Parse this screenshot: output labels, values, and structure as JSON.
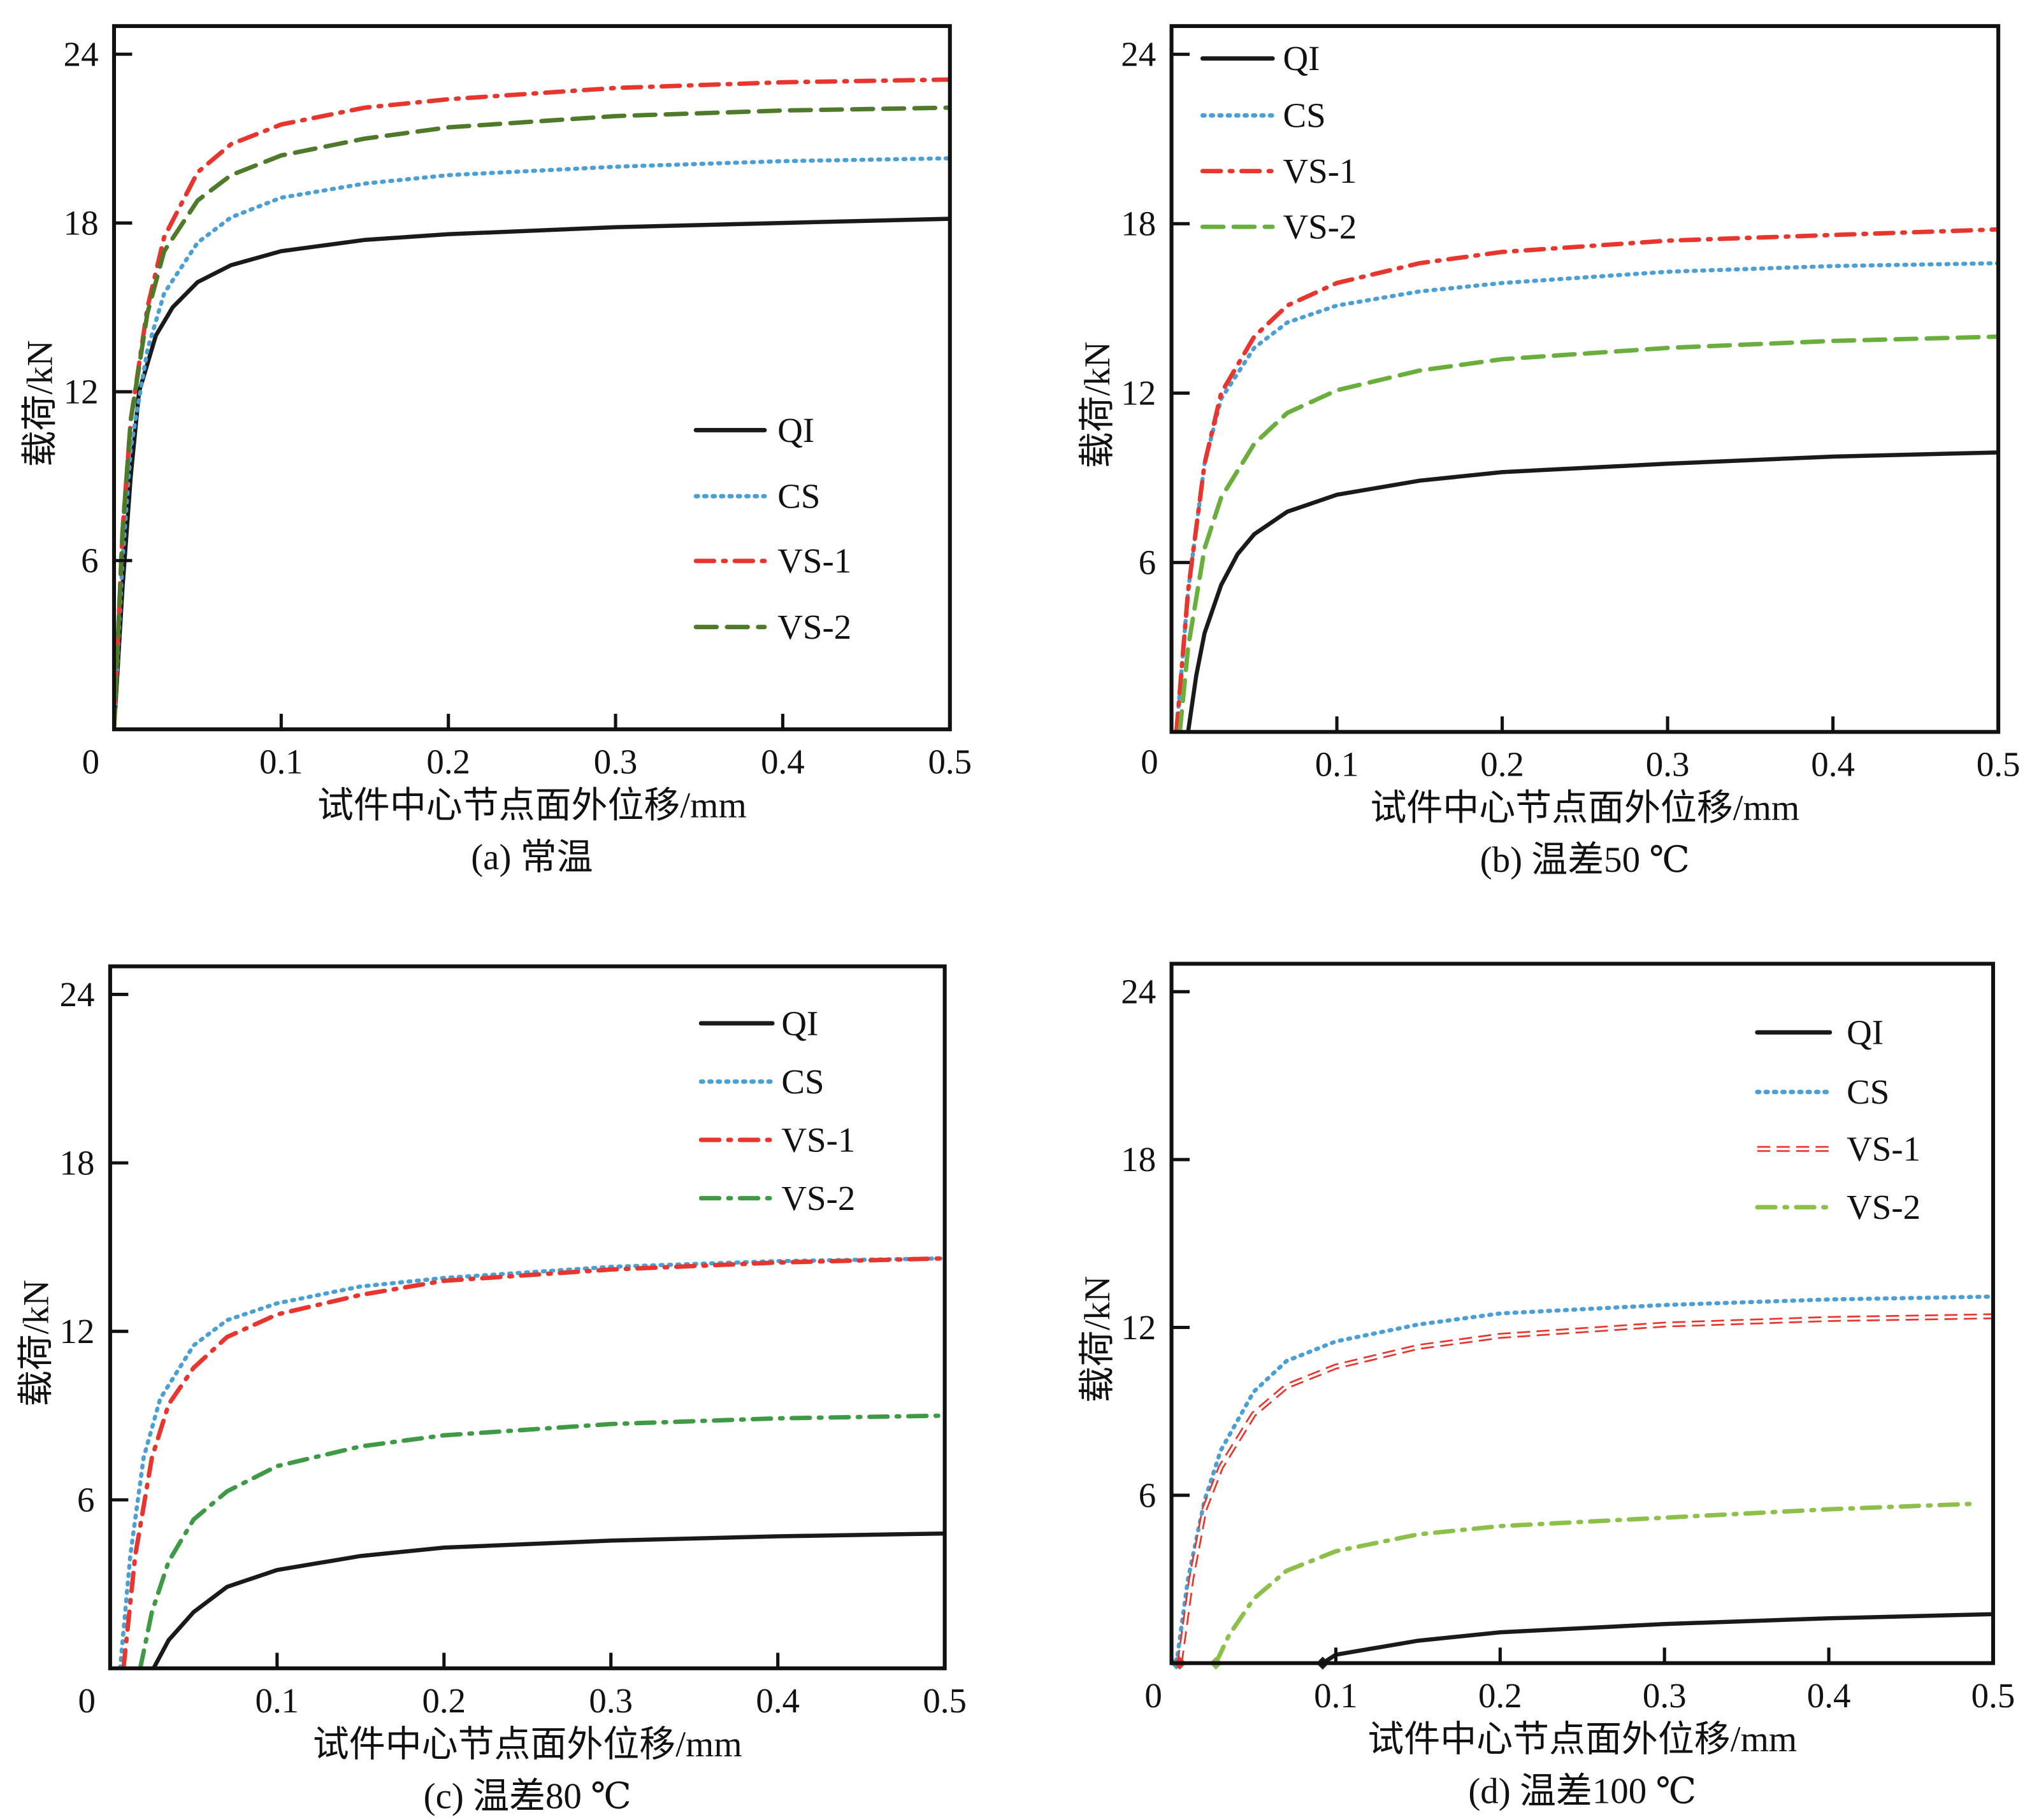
{
  "chart_data": [
    {
      "type": "line",
      "caption": "(a) 常温",
      "xlabel": "试件中心节点面外位移/mm",
      "ylabel": "载荷/kN",
      "xlim": [
        0,
        0.5
      ],
      "ylim": [
        0,
        25
      ],
      "xticks": [
        "0",
        "0.1",
        "0.2",
        "0.3",
        "0.4",
        "0.5"
      ],
      "yticks": [
        "6",
        "12",
        "18",
        "24"
      ],
      "grid": false,
      "legend_position": "center-right",
      "series": [
        {
          "name": "QI",
          "color": "#1a1a1a",
          "style": "solid",
          "x": [
            0,
            0.005,
            0.01,
            0.015,
            0.025,
            0.035,
            0.05,
            0.07,
            0.1,
            0.15,
            0.2,
            0.3,
            0.4,
            0.5
          ],
          "y": [
            0,
            5,
            9,
            12,
            14,
            15,
            15.9,
            16.5,
            17,
            17.4,
            17.6,
            17.85,
            18,
            18.15
          ]
        },
        {
          "name": "CS",
          "color": "#4a9fd4",
          "style": "dotted",
          "x": [
            0,
            0.005,
            0.01,
            0.02,
            0.03,
            0.05,
            0.07,
            0.1,
            0.15,
            0.2,
            0.3,
            0.4,
            0.5
          ],
          "y": [
            0,
            6,
            10,
            13.5,
            15.5,
            17.3,
            18.2,
            18.9,
            19.4,
            19.7,
            20,
            20.2,
            20.3
          ]
        },
        {
          "name": "VS-1",
          "color": "#e8352e",
          "style": "dashdot",
          "x": [
            0,
            0.005,
            0.01,
            0.02,
            0.03,
            0.05,
            0.07,
            0.1,
            0.15,
            0.2,
            0.3,
            0.4,
            0.5
          ],
          "y": [
            0,
            7,
            11,
            15,
            17.5,
            19.8,
            20.8,
            21.5,
            22.1,
            22.4,
            22.8,
            23,
            23.1
          ]
        },
        {
          "name": "VS-2",
          "color": "#4f7a2a",
          "style": "dashed",
          "x": [
            0,
            0.005,
            0.01,
            0.02,
            0.03,
            0.05,
            0.07,
            0.1,
            0.15,
            0.2,
            0.3,
            0.4,
            0.5
          ],
          "y": [
            0,
            7,
            11,
            14.8,
            17,
            18.8,
            19.7,
            20.4,
            21,
            21.4,
            21.8,
            22,
            22.1
          ]
        }
      ]
    },
    {
      "type": "line",
      "caption": "(b) 温差50 ℃",
      "xlabel": "试件中心节点面外位移/mm",
      "ylabel": "载荷/kN",
      "xlim": [
        0,
        0.5
      ],
      "ylim": [
        0,
        25
      ],
      "xticks": [
        "0",
        "0.1",
        "0.2",
        "0.3",
        "0.4",
        "0.5"
      ],
      "yticks": [
        "6",
        "12",
        "18",
        "24"
      ],
      "grid": false,
      "legend_position": "top-left",
      "series": [
        {
          "name": "QI",
          "color": "#1a1a1a",
          "style": "solid",
          "x": [
            0.01,
            0.015,
            0.02,
            0.03,
            0.04,
            0.05,
            0.07,
            0.1,
            0.15,
            0.2,
            0.3,
            0.4,
            0.5
          ],
          "y": [
            0,
            2,
            3.5,
            5.2,
            6.3,
            7,
            7.8,
            8.4,
            8.9,
            9.2,
            9.5,
            9.75,
            9.9
          ]
        },
        {
          "name": "CS",
          "color": "#4a9fd4",
          "style": "dotted",
          "x": [
            0.003,
            0.01,
            0.02,
            0.03,
            0.05,
            0.07,
            0.1,
            0.15,
            0.2,
            0.3,
            0.4,
            0.5
          ],
          "y": [
            0,
            5,
            9.5,
            11.8,
            13.6,
            14.5,
            15.1,
            15.6,
            15.9,
            16.3,
            16.5,
            16.6
          ]
        },
        {
          "name": "VS-1",
          "color": "#e8352e",
          "style": "dashdot",
          "x": [
            0.003,
            0.01,
            0.02,
            0.03,
            0.05,
            0.07,
            0.1,
            0.15,
            0.2,
            0.3,
            0.4,
            0.5
          ],
          "y": [
            0,
            5,
            9.5,
            12,
            14,
            15.1,
            15.9,
            16.6,
            17,
            17.4,
            17.6,
            17.8
          ]
        },
        {
          "name": "VS-2",
          "color": "#6aaf3d",
          "style": "dashed",
          "x": [
            0.005,
            0.01,
            0.02,
            0.03,
            0.05,
            0.07,
            0.1,
            0.15,
            0.2,
            0.3,
            0.4,
            0.5
          ],
          "y": [
            0,
            3,
            6.5,
            8.3,
            10.2,
            11.3,
            12.1,
            12.8,
            13.2,
            13.6,
            13.85,
            14
          ]
        }
      ]
    },
    {
      "type": "line",
      "caption": "(c) 温差80 ℃",
      "xlabel": "试件中心节点面外位移/mm",
      "ylabel": "载荷/kN",
      "xlim": [
        0,
        0.5
      ],
      "ylim": [
        0,
        25
      ],
      "xticks": [
        "0",
        "0.1",
        "0.2",
        "0.3",
        "0.4",
        "0.5"
      ],
      "yticks": [
        "6",
        "12",
        "18",
        "24"
      ],
      "grid": false,
      "legend_position": "top-right",
      "series": [
        {
          "name": "QI",
          "color": "#1a1a1a",
          "style": "solid",
          "x": [
            0.026,
            0.035,
            0.05,
            0.07,
            0.1,
            0.15,
            0.2,
            0.3,
            0.4,
            0.5
          ],
          "y": [
            0,
            1,
            2,
            2.9,
            3.5,
            4,
            4.3,
            4.55,
            4.7,
            4.8
          ]
        },
        {
          "name": "CS",
          "color": "#4a9fd4",
          "style": "dotted",
          "x": [
            0.006,
            0.012,
            0.02,
            0.03,
            0.05,
            0.07,
            0.1,
            0.15,
            0.2,
            0.3,
            0.4,
            0.5
          ],
          "y": [
            0,
            4,
            7.5,
            9.6,
            11.5,
            12.4,
            13,
            13.6,
            13.9,
            14.3,
            14.5,
            14.6
          ]
        },
        {
          "name": "VS-1",
          "color": "#e8352e",
          "style": "dashdot",
          "x": [
            0.008,
            0.015,
            0.025,
            0.035,
            0.05,
            0.07,
            0.1,
            0.15,
            0.2,
            0.3,
            0.4,
            0.5
          ],
          "y": [
            0,
            4,
            7.5,
            9.4,
            10.7,
            11.8,
            12.6,
            13.3,
            13.8,
            14.2,
            14.45,
            14.6
          ]
        },
        {
          "name": "VS-2",
          "color": "#3f9a45",
          "style": "dashdot",
          "x": [
            0.018,
            0.025,
            0.035,
            0.05,
            0.07,
            0.1,
            0.15,
            0.2,
            0.3,
            0.4,
            0.5
          ],
          "y": [
            0,
            2,
            3.8,
            5.3,
            6.3,
            7.2,
            7.9,
            8.3,
            8.7,
            8.9,
            9
          ]
        }
      ]
    },
    {
      "type": "line",
      "caption": "(d) 温差100 ℃",
      "xlabel": "试件中心节点面外位移/mm",
      "ylabel": "载荷/kN",
      "xlim": [
        0,
        0.5
      ],
      "ylim": [
        0,
        25
      ],
      "xticks": [
        "0",
        "0.1",
        "0.2",
        "0.3",
        "0.4",
        "0.5"
      ],
      "yticks": [
        "6",
        "12",
        "18",
        "24"
      ],
      "grid": false,
      "legend_position": "top-right",
      "series": [
        {
          "name": "QI",
          "color": "#1a1a1a",
          "style": "solid",
          "x": [
            0.092,
            0.1,
            0.15,
            0.2,
            0.3,
            0.4,
            0.5
          ],
          "y": [
            0,
            0.3,
            0.8,
            1.1,
            1.4,
            1.6,
            1.75
          ]
        },
        {
          "name": "CS",
          "color": "#4a9fd4",
          "style": "dotted",
          "x": [
            0.003,
            0.01,
            0.02,
            0.03,
            0.05,
            0.07,
            0.1,
            0.15,
            0.2,
            0.3,
            0.4,
            0.5
          ],
          "y": [
            0,
            3,
            5.8,
            7.6,
            9.7,
            10.8,
            11.5,
            12.1,
            12.5,
            12.8,
            13,
            13.1
          ]
        },
        {
          "name": "VS-1",
          "color": "#e8352e",
          "style": "outlined-dashed",
          "x": [
            0.005,
            0.012,
            0.02,
            0.03,
            0.05,
            0.07,
            0.1,
            0.15,
            0.2,
            0.3,
            0.4,
            0.5
          ],
          "y": [
            0,
            3,
            5.5,
            7,
            8.9,
            9.9,
            10.6,
            11.3,
            11.7,
            12.1,
            12.3,
            12.4
          ]
        },
        {
          "name": "VS-2",
          "color": "#8cc04b",
          "style": "dashdot",
          "x": [
            0.027,
            0.035,
            0.05,
            0.07,
            0.1,
            0.15,
            0.2,
            0.3,
            0.4,
            0.49
          ],
          "y": [
            0,
            1,
            2.3,
            3.3,
            4,
            4.6,
            4.9,
            5.2,
            5.5,
            5.7
          ]
        }
      ]
    }
  ]
}
